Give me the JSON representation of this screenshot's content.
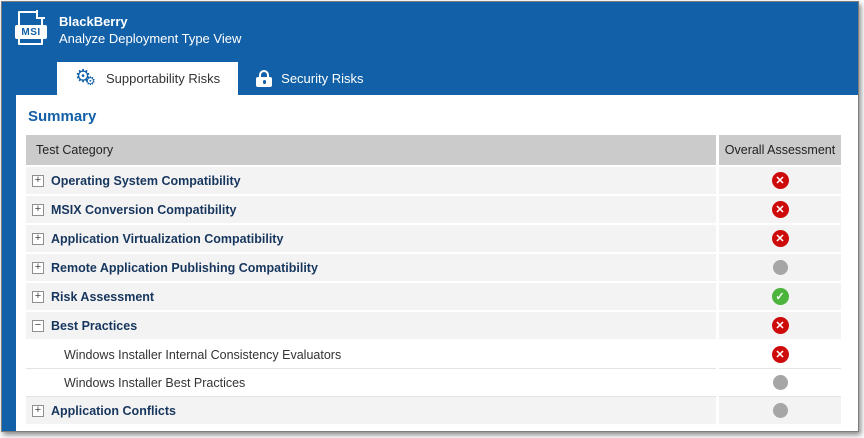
{
  "header": {
    "title": "BlackBerry",
    "subtitle": "Analyze Deployment Type View",
    "file_icon_label": "MSI"
  },
  "tabs": [
    {
      "label": "Supportability Risks",
      "icon": "gears-icon",
      "active": true
    },
    {
      "label": "Security Risks",
      "icon": "lock-icon",
      "active": false
    }
  ],
  "summary_title": "Summary",
  "table": {
    "columns": {
      "category": "Test Category",
      "assessment": "Overall Assessment"
    },
    "rows": [
      {
        "label": "Operating System Compatibility",
        "level": 0,
        "expander": "+",
        "status": "error"
      },
      {
        "label": "MSIX Conversion Compatibility",
        "level": 0,
        "expander": "+",
        "status": "error"
      },
      {
        "label": "Application Virtualization Compatibility",
        "level": 0,
        "expander": "+",
        "status": "error"
      },
      {
        "label": "Remote Application Publishing Compatibility",
        "level": 0,
        "expander": "+",
        "status": "neutral"
      },
      {
        "label": "Risk Assessment",
        "level": 0,
        "expander": "+",
        "status": "success"
      },
      {
        "label": "Best Practices",
        "level": 0,
        "expander": "-",
        "status": "error"
      },
      {
        "label": "Windows Installer Internal Consistency Evaluators",
        "level": 1,
        "expander": null,
        "status": "error"
      },
      {
        "label": "Windows Installer Best Practices",
        "level": 1,
        "expander": null,
        "status": "neutral"
      },
      {
        "label": "Application Conflicts",
        "level": 0,
        "expander": "+",
        "status": "neutral"
      }
    ]
  },
  "status_glyphs": {
    "error": "✕",
    "success": "✓",
    "neutral": ""
  },
  "colors": {
    "brand_blue": "#1160A8",
    "error_red": "#CE0B0B",
    "success_green": "#4CB43C",
    "neutral_gray": "#A6A6A6"
  }
}
